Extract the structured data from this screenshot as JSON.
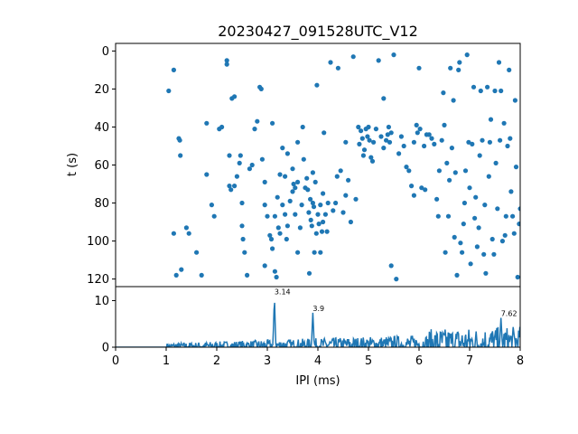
{
  "chart_data": [
    {
      "type": "scatter",
      "title": "20230427_091528UTC_V12",
      "ylabel": "t (s)",
      "xlabel": "",
      "xlim": [
        0,
        8
      ],
      "ylim": [
        124,
        -4
      ],
      "y_inverted": true,
      "x_ticks_shown": false,
      "yticks": [
        "0",
        "20",
        "40",
        "60",
        "80",
        "100",
        "120"
      ],
      "ytick_values": [
        0,
        20,
        40,
        60,
        80,
        100,
        120
      ],
      "color": "#1f77b4",
      "points": [
        [
          1.05,
          21
        ],
        [
          1.15,
          10
        ],
        [
          1.25,
          46
        ],
        [
          1.27,
          47
        ],
        [
          1.28,
          55
        ],
        [
          1.3,
          115
        ],
        [
          1.15,
          96
        ],
        [
          1.2,
          118
        ],
        [
          1.4,
          93
        ],
        [
          1.45,
          96
        ],
        [
          1.6,
          106
        ],
        [
          1.7,
          118
        ],
        [
          1.8,
          38
        ],
        [
          1.8,
          65
        ],
        [
          1.9,
          81
        ],
        [
          1.95,
          87
        ],
        [
          2.05,
          41
        ],
        [
          2.1,
          40
        ],
        [
          2.2,
          5
        ],
        [
          2.2,
          7
        ],
        [
          2.25,
          55
        ],
        [
          2.25,
          71
        ],
        [
          2.28,
          73
        ],
        [
          2.3,
          25
        ],
        [
          2.35,
          24
        ],
        [
          2.35,
          71
        ],
        [
          2.4,
          66
        ],
        [
          2.45,
          59
        ],
        [
          2.47,
          55
        ],
        [
          2.5,
          80
        ],
        [
          2.5,
          92
        ],
        [
          2.52,
          99
        ],
        [
          2.55,
          106
        ],
        [
          2.6,
          118
        ],
        [
          2.65,
          62
        ],
        [
          2.7,
          60
        ],
        [
          2.75,
          41
        ],
        [
          2.8,
          37
        ],
        [
          2.85,
          19
        ],
        [
          2.88,
          20
        ],
        [
          2.9,
          57
        ],
        [
          2.95,
          69
        ],
        [
          2.95,
          81
        ],
        [
          2.95,
          113
        ],
        [
          3.0,
          87
        ],
        [
          3.05,
          97
        ],
        [
          3.08,
          99
        ],
        [
          3.1,
          38
        ],
        [
          3.1,
          104
        ],
        [
          3.15,
          87
        ],
        [
          3.15,
          116
        ],
        [
          3.18,
          119
        ],
        [
          3.2,
          77
        ],
        [
          3.22,
          93
        ],
        [
          3.25,
          65
        ],
        [
          3.25,
          96
        ],
        [
          3.3,
          51
        ],
        [
          3.3,
          81
        ],
        [
          3.35,
          66
        ],
        [
          3.35,
          86
        ],
        [
          3.38,
          99
        ],
        [
          3.4,
          54
        ],
        [
          3.4,
          92
        ],
        [
          3.45,
          79
        ],
        [
          3.5,
          62
        ],
        [
          3.5,
          74
        ],
        [
          3.52,
          70
        ],
        [
          3.55,
          72
        ],
        [
          3.55,
          86
        ],
        [
          3.6,
          48
        ],
        [
          3.6,
          69
        ],
        [
          3.6,
          106
        ],
        [
          3.65,
          93
        ],
        [
          3.68,
          81
        ],
        [
          3.7,
          40
        ],
        [
          3.72,
          57
        ],
        [
          3.75,
          72
        ],
        [
          3.78,
          67
        ],
        [
          3.8,
          73
        ],
        [
          3.82,
          85
        ],
        [
          3.83,
          117
        ],
        [
          3.85,
          78
        ],
        [
          3.86,
          89
        ],
        [
          3.88,
          92
        ],
        [
          3.9,
          64
        ],
        [
          3.9,
          80
        ],
        [
          3.92,
          82
        ],
        [
          3.93,
          106
        ],
        [
          3.95,
          69
        ],
        [
          3.97,
          96
        ],
        [
          3.98,
          18
        ],
        [
          4.0,
          86
        ],
        [
          4.02,
          91
        ],
        [
          4.05,
          106
        ],
        [
          4.05,
          81
        ],
        [
          4.08,
          95
        ],
        [
          4.1,
          75
        ],
        [
          4.1,
          90
        ],
        [
          4.12,
          43
        ],
        [
          4.15,
          86
        ],
        [
          4.18,
          95
        ],
        [
          4.2,
          80
        ],
        [
          4.25,
          6
        ],
        [
          4.3,
          84
        ],
        [
          4.35,
          80
        ],
        [
          4.38,
          66
        ],
        [
          4.4,
          9
        ],
        [
          4.45,
          63
        ],
        [
          4.5,
          85
        ],
        [
          4.55,
          48
        ],
        [
          4.55,
          76
        ],
        [
          4.6,
          68
        ],
        [
          4.65,
          90
        ],
        [
          4.7,
          3
        ],
        [
          4.75,
          78
        ],
        [
          4.8,
          40
        ],
        [
          4.82,
          49
        ],
        [
          4.85,
          42
        ],
        [
          4.88,
          46
        ],
        [
          4.9,
          55
        ],
        [
          4.92,
          52
        ],
        [
          4.95,
          41
        ],
        [
          4.98,
          45
        ],
        [
          5.0,
          40
        ],
        [
          5.02,
          47
        ],
        [
          5.05,
          56
        ],
        [
          5.08,
          58
        ],
        [
          5.1,
          48
        ],
        [
          5.15,
          41
        ],
        [
          5.2,
          5
        ],
        [
          5.25,
          45
        ],
        [
          5.3,
          25
        ],
        [
          5.3,
          51
        ],
        [
          5.35,
          47
        ],
        [
          5.38,
          44
        ],
        [
          5.4,
          40
        ],
        [
          5.42,
          48
        ],
        [
          5.45,
          43
        ],
        [
          5.45,
          113
        ],
        [
          5.5,
          2
        ],
        [
          5.55,
          120
        ],
        [
          5.6,
          54
        ],
        [
          5.65,
          45
        ],
        [
          5.7,
          50
        ],
        [
          5.75,
          61
        ],
        [
          5.8,
          63
        ],
        [
          5.85,
          71
        ],
        [
          5.9,
          48
        ],
        [
          5.9,
          76
        ],
        [
          5.95,
          39
        ],
        [
          5.97,
          43
        ],
        [
          6.0,
          9
        ],
        [
          6.02,
          41
        ],
        [
          6.05,
          72
        ],
        [
          6.1,
          50
        ],
        [
          6.12,
          73
        ],
        [
          6.15,
          44
        ],
        [
          6.2,
          44
        ],
        [
          6.25,
          46
        ],
        [
          6.3,
          49
        ],
        [
          6.35,
          78
        ],
        [
          6.38,
          87
        ],
        [
          6.4,
          63
        ],
        [
          6.45,
          47
        ],
        [
          6.48,
          22
        ],
        [
          6.5,
          39
        ],
        [
          6.52,
          106
        ],
        [
          6.55,
          59
        ],
        [
          6.58,
          87
        ],
        [
          6.6,
          68
        ],
        [
          6.62,
          9
        ],
        [
          6.65,
          51
        ],
        [
          6.68,
          26
        ],
        [
          6.7,
          98
        ],
        [
          6.72,
          64
        ],
        [
          6.75,
          118
        ],
        [
          6.78,
          10
        ],
        [
          6.8,
          6
        ],
        [
          6.82,
          101
        ],
        [
          6.85,
          106
        ],
        [
          6.88,
          91
        ],
        [
          6.9,
          80
        ],
        [
          6.92,
          63
        ],
        [
          6.95,
          2
        ],
        [
          6.98,
          48
        ],
        [
          7.0,
          72
        ],
        [
          7.02,
          112
        ],
        [
          7.05,
          49
        ],
        [
          7.08,
          19
        ],
        [
          7.1,
          88
        ],
        [
          7.12,
          77
        ],
        [
          7.15,
          103
        ],
        [
          7.18,
          93
        ],
        [
          7.2,
          55
        ],
        [
          7.22,
          21
        ],
        [
          7.25,
          47
        ],
        [
          7.28,
          107
        ],
        [
          7.3,
          81
        ],
        [
          7.32,
          117
        ],
        [
          7.35,
          19
        ],
        [
          7.38,
          66
        ],
        [
          7.4,
          48
        ],
        [
          7.42,
          36
        ],
        [
          7.45,
          99
        ],
        [
          7.48,
          107
        ],
        [
          7.5,
          21
        ],
        [
          7.52,
          59
        ],
        [
          7.55,
          83
        ],
        [
          7.58,
          6
        ],
        [
          7.6,
          47
        ],
        [
          7.62,
          21
        ],
        [
          7.65,
          100
        ],
        [
          7.68,
          38
        ],
        [
          7.7,
          97
        ],
        [
          7.72,
          87
        ],
        [
          7.75,
          50
        ],
        [
          7.78,
          10
        ],
        [
          7.8,
          46
        ],
        [
          7.82,
          74
        ],
        [
          7.85,
          87
        ],
        [
          7.88,
          96
        ],
        [
          7.9,
          26
        ],
        [
          7.92,
          61
        ],
        [
          7.95,
          119
        ],
        [
          7.98,
          91
        ],
        [
          8.0,
          83
        ]
      ]
    },
    {
      "type": "line",
      "xlabel": "IPI (ms)",
      "ylabel": "",
      "xlim": [
        0,
        8
      ],
      "ylim": [
        0,
        13
      ],
      "xticks": [
        "0",
        "1",
        "2",
        "3",
        "4",
        "5",
        "6",
        "7",
        "8"
      ],
      "xtick_values": [
        0,
        1,
        2,
        3,
        4,
        5,
        6,
        7,
        8
      ],
      "yticks": [
        "0",
        "10"
      ],
      "ytick_values": [
        0,
        10
      ],
      "color": "#1f77b4",
      "annotations": [
        {
          "text": "3.14",
          "x": 3.14,
          "y": 11
        },
        {
          "text": "3.9",
          "x": 3.9,
          "y": 7.4
        },
        {
          "text": "7.62",
          "x": 7.62,
          "y": 6.3
        }
      ],
      "peaks": [
        [
          3.14,
          11
        ],
        [
          3.9,
          7.4
        ],
        [
          7.62,
          6.3
        ]
      ]
    }
  ]
}
